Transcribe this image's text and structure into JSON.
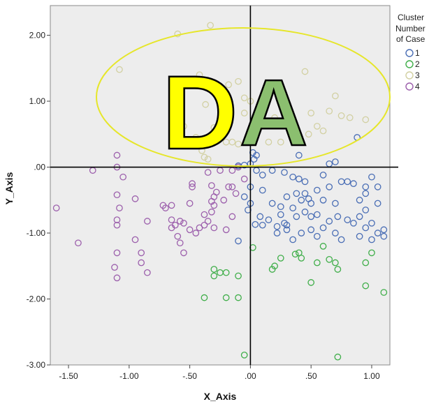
{
  "chart_data": {
    "type": "scatter",
    "xlabel": "X_Axis",
    "ylabel": "Y_Axis",
    "xlim": [
      -1.65,
      1.15
    ],
    "ylim": [
      -3.0,
      2.45
    ],
    "x_ticks": [
      -1.5,
      -1.0,
      -0.5,
      0.0,
      0.5,
      1.0
    ],
    "x_tick_labels": [
      "-1.50",
      "-1.00",
      "-.50",
      ".00",
      ".50",
      "1.00"
    ],
    "y_ticks": [
      -3.0,
      -2.0,
      -1.0,
      0.0,
      1.0,
      2.0
    ],
    "y_tick_labels": [
      "-3.00",
      "-2.00",
      "-1.00",
      ".00",
      "1.00",
      "2.00"
    ],
    "grid": false,
    "reference_lines": {
      "x": 0.0,
      "y": 0.0
    },
    "legend": {
      "title_lines": [
        "Cluster",
        "Number",
        "of Case"
      ],
      "placement": "right"
    },
    "series": [
      {
        "name": "1",
        "color": "#4a6eb5",
        "points": [
          [
            0.88,
            0.45
          ],
          [
            0.7,
            0.08
          ],
          [
            0.65,
            0.05
          ],
          [
            0.4,
            0.18
          ],
          [
            0.05,
            0.18
          ],
          [
            0.03,
            0.12
          ],
          [
            0.02,
            0.22
          ],
          [
            0.0,
            0.05
          ],
          [
            -0.05,
            0.03
          ],
          [
            -0.1,
            0.02
          ],
          [
            0.05,
            -0.05
          ],
          [
            0.1,
            -0.12
          ],
          [
            0.18,
            -0.05
          ],
          [
            0.28,
            -0.08
          ],
          [
            0.35,
            -0.15
          ],
          [
            0.4,
            -0.18
          ],
          [
            0.45,
            -0.22
          ],
          [
            0.6,
            -0.12
          ],
          [
            0.8,
            -0.22
          ],
          [
            0.85,
            -0.25
          ],
          [
            1.0,
            -0.15
          ],
          [
            1.05,
            -0.3
          ],
          [
            0.95,
            -0.4
          ],
          [
            0.9,
            -0.5
          ],
          [
            1.05,
            -0.55
          ],
          [
            0.95,
            -0.65
          ],
          [
            0.9,
            -0.75
          ],
          [
            1.0,
            -0.85
          ],
          [
            0.85,
            -0.85
          ],
          [
            0.7,
            -0.55
          ],
          [
            0.6,
            -0.5
          ],
          [
            0.5,
            -0.55
          ],
          [
            0.42,
            -0.5
          ],
          [
            0.38,
            -0.4
          ],
          [
            0.3,
            -0.45
          ],
          [
            0.25,
            -0.6
          ],
          [
            0.18,
            -0.55
          ],
          [
            0.1,
            -0.35
          ],
          [
            0.0,
            -0.3
          ],
          [
            -0.05,
            -0.45
          ],
          [
            0.0,
            -0.55
          ],
          [
            -0.02,
            -0.65
          ],
          [
            0.08,
            -0.75
          ],
          [
            0.15,
            -0.8
          ],
          [
            0.28,
            -0.85
          ],
          [
            0.38,
            -0.75
          ],
          [
            0.45,
            -0.68
          ],
          [
            0.55,
            -0.72
          ],
          [
            0.65,
            -0.82
          ],
          [
            0.72,
            -0.75
          ],
          [
            0.8,
            -0.8
          ],
          [
            0.95,
            -0.92
          ],
          [
            1.05,
            -1.0
          ],
          [
            1.1,
            -1.05
          ],
          [
            1.0,
            -1.1
          ],
          [
            0.9,
            -1.05
          ],
          [
            0.7,
            -1.0
          ],
          [
            0.6,
            -0.92
          ],
          [
            0.5,
            -0.95
          ],
          [
            0.42,
            -1.0
          ],
          [
            0.3,
            -0.95
          ],
          [
            0.22,
            -0.9
          ],
          [
            0.1,
            -0.88
          ],
          [
            0.04,
            -0.87
          ],
          [
            0.25,
            -0.72
          ],
          [
            0.35,
            -0.62
          ],
          [
            0.48,
            -0.48
          ],
          [
            0.55,
            -0.35
          ],
          [
            0.65,
            -0.3
          ],
          [
            0.75,
            -0.22
          ],
          [
            0.45,
            -0.4
          ],
          [
            0.22,
            -1.0
          ],
          [
            0.35,
            -1.1
          ],
          [
            0.55,
            -1.05
          ],
          [
            0.75,
            -1.1
          ],
          [
            -0.1,
            -1.12
          ],
          [
            0.3,
            -0.88
          ],
          [
            0.5,
            -0.75
          ],
          [
            1.1,
            -0.95
          ],
          [
            0.95,
            -0.3
          ]
        ]
      },
      {
        "name": "2",
        "color": "#3fae49",
        "points": [
          [
            0.02,
            -1.22
          ],
          [
            0.4,
            -1.3
          ],
          [
            0.42,
            -1.38
          ],
          [
            0.37,
            -1.32
          ],
          [
            0.6,
            -1.2
          ],
          [
            0.65,
            -1.4
          ],
          [
            0.7,
            -1.45
          ],
          [
            0.72,
            -1.55
          ],
          [
            0.95,
            -1.45
          ],
          [
            1.0,
            -1.3
          ],
          [
            0.95,
            -1.8
          ],
          [
            1.1,
            -1.9
          ],
          [
            0.5,
            -1.75
          ],
          [
            0.25,
            -1.38
          ],
          [
            0.2,
            -1.5
          ],
          [
            0.18,
            -1.55
          ],
          [
            -0.3,
            -1.55
          ],
          [
            -0.3,
            -1.65
          ],
          [
            -0.25,
            -1.6
          ],
          [
            -0.2,
            -1.6
          ],
          [
            -0.1,
            -1.65
          ],
          [
            -0.1,
            -1.98
          ],
          [
            -0.2,
            -1.98
          ],
          [
            -0.38,
            -1.98
          ],
          [
            -0.05,
            -2.85
          ],
          [
            0.72,
            -2.88
          ],
          [
            0.55,
            -1.45
          ]
        ]
      },
      {
        "name": "3",
        "color": "#d2d0a2",
        "points": [
          [
            -0.6,
            2.02
          ],
          [
            -0.33,
            2.15
          ],
          [
            -1.08,
            1.48
          ],
          [
            -0.42,
            1.4
          ],
          [
            -0.35,
            1.25
          ],
          [
            -0.3,
            1.15
          ],
          [
            -0.18,
            1.25
          ],
          [
            -0.1,
            1.3
          ],
          [
            -0.05,
            1.05
          ],
          [
            0.0,
            1.0
          ],
          [
            -0.37,
            0.95
          ],
          [
            0.45,
            1.45
          ],
          [
            0.7,
            1.08
          ],
          [
            0.75,
            0.78
          ],
          [
            0.65,
            0.85
          ],
          [
            0.5,
            0.82
          ],
          [
            0.55,
            0.62
          ],
          [
            0.48,
            0.5
          ],
          [
            0.35,
            0.45
          ],
          [
            0.25,
            0.38
          ],
          [
            0.15,
            0.38
          ],
          [
            0.1,
            0.8
          ],
          [
            0.05,
            0.82
          ],
          [
            0.2,
            0.75
          ],
          [
            0.3,
            0.65
          ],
          [
            -0.05,
            0.82
          ],
          [
            -0.3,
            0.6
          ],
          [
            -0.25,
            0.45
          ],
          [
            -0.2,
            0.38
          ],
          [
            -0.15,
            0.38
          ],
          [
            -0.1,
            0.35
          ],
          [
            -0.45,
            0.45
          ],
          [
            -0.4,
            0.25
          ],
          [
            -0.38,
            0.15
          ],
          [
            -0.35,
            0.12
          ],
          [
            -0.55,
            0.62
          ],
          [
            0.6,
            0.55
          ],
          [
            0.95,
            0.72
          ],
          [
            0.82,
            0.75
          ]
        ]
      },
      {
        "name": "4",
        "color": "#9c5fac",
        "points": [
          [
            -1.1,
            0.18
          ],
          [
            -1.1,
            0.0
          ],
          [
            -1.3,
            -0.05
          ],
          [
            -1.6,
            -0.62
          ],
          [
            -1.42,
            -1.15
          ],
          [
            -1.1,
            -0.42
          ],
          [
            -1.1,
            -0.8
          ],
          [
            -1.1,
            -0.88
          ],
          [
            -1.1,
            -1.3
          ],
          [
            -1.12,
            -1.52
          ],
          [
            -1.1,
            -1.68
          ],
          [
            -0.9,
            -1.45
          ],
          [
            -0.85,
            -1.6
          ],
          [
            -0.9,
            -1.3
          ],
          [
            -0.95,
            -1.1
          ],
          [
            -0.85,
            -0.82
          ],
          [
            -0.95,
            -0.48
          ],
          [
            -0.72,
            -0.58
          ],
          [
            -0.65,
            -0.58
          ],
          [
            -0.62,
            -0.88
          ],
          [
            -0.65,
            -0.92
          ],
          [
            -0.6,
            -1.05
          ],
          [
            -0.58,
            -1.15
          ],
          [
            -0.55,
            -1.3
          ],
          [
            -0.65,
            -0.8
          ],
          [
            -0.58,
            -0.82
          ],
          [
            -0.5,
            -0.55
          ],
          [
            -0.48,
            -0.3
          ],
          [
            -0.48,
            -0.25
          ],
          [
            -0.45,
            -1.0
          ],
          [
            -0.42,
            -0.92
          ],
          [
            -0.38,
            -0.88
          ],
          [
            -0.35,
            -0.82
          ],
          [
            -0.32,
            -0.52
          ],
          [
            -0.3,
            -0.58
          ],
          [
            -0.3,
            -0.45
          ],
          [
            -0.28,
            -0.38
          ],
          [
            -0.22,
            -0.5
          ],
          [
            -0.18,
            -0.3
          ],
          [
            -0.15,
            -0.3
          ],
          [
            -0.12,
            -0.4
          ],
          [
            -0.32,
            -0.28
          ],
          [
            -0.38,
            -0.72
          ],
          [
            -0.3,
            -0.92
          ],
          [
            -0.2,
            -0.95
          ],
          [
            -0.15,
            -0.75
          ],
          [
            -0.35,
            -0.08
          ],
          [
            -0.1,
            0.0
          ],
          [
            -0.05,
            -0.18
          ],
          [
            -0.15,
            -0.05
          ],
          [
            -0.5,
            -0.95
          ],
          [
            -0.55,
            -0.85
          ],
          [
            -0.7,
            -0.62
          ],
          [
            -0.25,
            -0.05
          ],
          [
            -0.32,
            -0.68
          ],
          [
            -1.05,
            -0.15
          ],
          [
            -1.08,
            -0.62
          ]
        ]
      }
    ]
  },
  "overlay": {
    "letters": [
      "D",
      "A"
    ],
    "letter_colors": [
      "#ffff00",
      "#8bbf6f"
    ],
    "ellipse_color": "#e6e62a"
  }
}
